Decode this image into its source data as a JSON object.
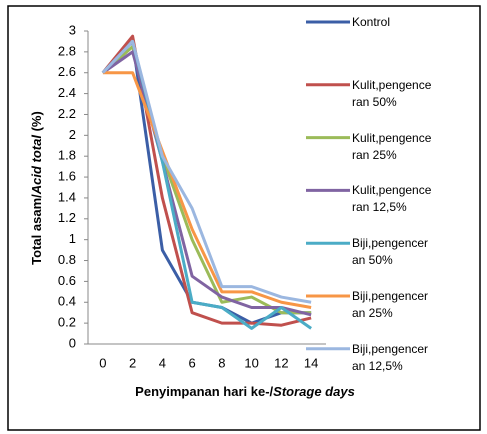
{
  "chart_data": {
    "type": "line",
    "ylabel": [
      "Total asam/",
      "Acid total",
      " (%)"
    ],
    "xlabel": [
      "Penyimpanan hari ke-/",
      "Storage days"
    ],
    "categories": [
      "0",
      "2",
      "4",
      "6",
      "8",
      "10",
      "12",
      "14"
    ],
    "ylim": [
      0,
      3
    ],
    "yticks": [
      0,
      0.2,
      0.4,
      0.6,
      0.8,
      1,
      1.2,
      1.4,
      1.6,
      1.8,
      2,
      2.2,
      2.4,
      2.6,
      2.8,
      3
    ],
    "series": [
      {
        "name": "Kontrol",
        "color": "#3b5ea6",
        "values": [
          2.6,
          2.9,
          0.9,
          0.4,
          0.35,
          0.2,
          0.3,
          0.3
        ]
      },
      {
        "name": "Kulit,pengenceran 50%",
        "color": "#c0504d",
        "values": [
          2.6,
          2.95,
          1.4,
          0.3,
          0.2,
          0.2,
          0.18,
          0.25
        ]
      },
      {
        "name": "Kulit,pengenceran 25%",
        "color": "#9bbb59",
        "values": [
          2.6,
          2.85,
          1.8,
          1.0,
          0.4,
          0.45,
          0.3,
          0.3
        ]
      },
      {
        "name": "Kulit,pengenceran 12,5%",
        "color": "#8064a2",
        "values": [
          2.6,
          2.8,
          1.75,
          0.65,
          0.45,
          0.35,
          0.35,
          0.28
        ]
      },
      {
        "name": "Biji,pengenceran 50%",
        "color": "#4bacc6",
        "values": [
          2.6,
          2.9,
          1.75,
          0.4,
          0.35,
          0.15,
          0.35,
          0.15
        ]
      },
      {
        "name": "Biji,pengenceran 25%",
        "color": "#f79646",
        "values": [
          2.6,
          2.6,
          1.85,
          1.1,
          0.5,
          0.5,
          0.4,
          0.35
        ]
      },
      {
        "name": "Biji,pengenceran 12,5%",
        "color": "#9bb7e0",
        "values": [
          2.6,
          2.9,
          1.8,
          1.3,
          0.55,
          0.55,
          0.45,
          0.4
        ]
      }
    ]
  }
}
